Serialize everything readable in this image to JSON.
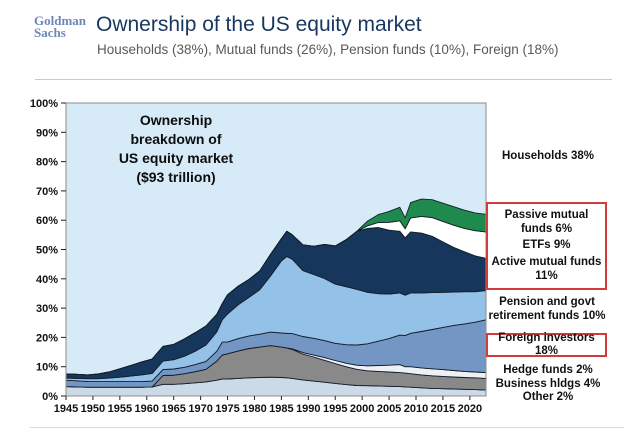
{
  "header": {
    "logo_line1": "Goldman",
    "logo_line2": "Sachs",
    "title": "Ownership of the US equity market",
    "subtitle": "Households (38%), Mutual funds (26%), Pension funds (10%), Foreign (18%)"
  },
  "annotation": {
    "line1": "Ownership",
    "line2": "breakdown of",
    "line3": "US equity market",
    "line4": "($93 trillion)"
  },
  "right_labels": {
    "households": "Households 38%",
    "passive_mutual_funds": "Passive mutual funds 6%",
    "etfs": "ETFs 9%",
    "active_mutual_funds": "Active mutual funds 11%",
    "pension": "Pension and govt retirement funds 10%",
    "foreign": "Foreign investors 18%",
    "hedge": "Hedge funds 2%",
    "business": "Business hldgs 4%",
    "other": "Other 2%"
  },
  "colors": {
    "accent_red": "#d23b3b",
    "title_blue": "#17375e",
    "logo_blue": "#6e87b7",
    "subtitle_gray": "#595959",
    "plot_bg": "#d6eaf8",
    "plot_border": "#8c8c8c",
    "band_stroke": "#141e2b",
    "tick_color": "#222222"
  },
  "chart_data": {
    "type": "area",
    "stacked": true,
    "title": "Ownership breakdown of US equity market ($93 trillion)",
    "xlim": [
      1945,
      2023
    ],
    "ylim": [
      0,
      100
    ],
    "x_ticks": [
      "1945",
      "1950",
      "1955",
      "1960",
      "1965",
      "1970",
      "1975",
      "1980",
      "1985",
      "1990",
      "1995",
      "2000",
      "2005",
      "2010",
      "2015",
      "2020"
    ],
    "y_ticks": [
      "0%",
      "10%",
      "20%",
      "30%",
      "40%",
      "50%",
      "60%",
      "70%",
      "80%",
      "90%",
      "100%"
    ],
    "background_area": {
      "name": "Households",
      "share_pct": 38,
      "color": "#d6eaf8",
      "note": "plot background represents remaining share up to 100%"
    },
    "x": [
      1945,
      1947,
      1949,
      1951,
      1953,
      1955,
      1957,
      1959,
      1961,
      1963,
      1965,
      1967,
      1969,
      1971,
      1973,
      1974,
      1975,
      1977,
      1979,
      1981,
      1983,
      1985,
      1986,
      1987,
      1989,
      1991,
      1993,
      1995,
      1997,
      1999,
      2001,
      2003,
      2005,
      2007,
      2008,
      2009,
      2011,
      2013,
      2015,
      2017,
      2019,
      2021,
      2023
    ],
    "series": [
      {
        "id": "other",
        "name": "Other",
        "share_pct": 2,
        "color": "#ccd9e6",
        "values": [
          3.2,
          3.1,
          3.0,
          3.0,
          3.0,
          3.0,
          3.0,
          3.0,
          3.1,
          4.0,
          4.0,
          4.2,
          4.5,
          4.8,
          5.4,
          5.8,
          5.8,
          6.0,
          6.2,
          6.3,
          6.4,
          6.3,
          6.2,
          6.0,
          5.5,
          5.1,
          4.7,
          4.3,
          3.9,
          3.6,
          3.5,
          3.4,
          3.3,
          3.2,
          3.1,
          3.0,
          2.8,
          2.6,
          2.5,
          2.4,
          2.3,
          2.2,
          2.0
        ]
      },
      {
        "id": "business-holdings",
        "name": "Business hldgs",
        "share_pct": 4,
        "color": "#898989",
        "values": [
          0,
          0,
          0,
          0,
          0,
          0,
          0,
          0,
          0,
          3.0,
          3.1,
          3.4,
          3.8,
          4.3,
          6.5,
          8.2,
          8.6,
          9.4,
          10.0,
          10.4,
          10.8,
          10.4,
          10.2,
          9.9,
          8.8,
          8.2,
          7.5,
          6.8,
          6.1,
          5.5,
          5.1,
          5.0,
          4.9,
          4.8,
          4.7,
          4.6,
          4.4,
          4.3,
          4.2,
          4.1,
          4.0,
          4.0,
          4.0
        ]
      },
      {
        "id": "hedge-funds",
        "name": "Hedge funds",
        "share_pct": 2,
        "color": "#eef1f4",
        "values": [
          0,
          0,
          0,
          0,
          0,
          0,
          0,
          0,
          0,
          0,
          0,
          0,
          0,
          0,
          0,
          0,
          0,
          0,
          0,
          0,
          0,
          0,
          0,
          0.2,
          0.5,
          0.7,
          0.9,
          1.0,
          1.2,
          1.4,
          1.7,
          2.0,
          2.3,
          2.7,
          2.2,
          2.4,
          2.4,
          2.4,
          2.3,
          2.2,
          2.1,
          2.0,
          2.0
        ]
      },
      {
        "id": "foreign-investors",
        "name": "Foreign investors",
        "share_pct": 18,
        "color": "#7496c4",
        "values": [
          2.2,
          2.1,
          2.0,
          1.9,
          1.9,
          1.9,
          1.9,
          1.9,
          2.0,
          2.0,
          2.1,
          2.2,
          2.4,
          2.7,
          3.4,
          4.4,
          4.0,
          4.2,
          4.3,
          4.4,
          4.6,
          4.8,
          5.0,
          5.2,
          5.5,
          5.7,
          5.8,
          5.9,
          6.3,
          6.9,
          7.5,
          8.3,
          9.1,
          10.1,
          10.6,
          11.4,
          12.4,
          13.4,
          14.4,
          15.4,
          16.2,
          17.0,
          18.0
        ]
      },
      {
        "id": "pension-govt-retirement",
        "name": "Pension and govt retirement funds",
        "share_pct": 10,
        "color": "#93c1e8",
        "values": [
          0.7,
          0.8,
          0.9,
          1.0,
          1.2,
          1.5,
          1.9,
          2.3,
          2.6,
          2.9,
          3.2,
          3.8,
          4.6,
          5.6,
          6.6,
          7.6,
          9.6,
          11.6,
          13.2,
          15.2,
          19.2,
          24.6,
          26.2,
          25.4,
          22.5,
          21.8,
          21.2,
          20.2,
          19.8,
          19.0,
          17.6,
          16.2,
          15.2,
          14.4,
          13.8,
          13.8,
          13.2,
          12.6,
          12.0,
          11.4,
          11.0,
          10.4,
          10.0
        ]
      },
      {
        "id": "active-mutual-funds",
        "name": "Active mutual funds",
        "share_pct": 11,
        "color": "#16365c",
        "values": [
          1.4,
          1.4,
          1.3,
          1.6,
          2.1,
          2.9,
          3.6,
          4.4,
          4.9,
          5.0,
          5.2,
          5.9,
          6.3,
          6.5,
          6.0,
          5.5,
          6.5,
          6.3,
          6.1,
          6.4,
          7.4,
          7.6,
          8.6,
          8.3,
          8.8,
          9.6,
          11.6,
          13.0,
          16.0,
          19.8,
          21.8,
          22.6,
          21.8,
          21.0,
          19.6,
          20.8,
          20.4,
          19.2,
          17.2,
          15.2,
          13.6,
          12.2,
          11.0
        ]
      },
      {
        "id": "etfs",
        "name": "ETFs",
        "share_pct": 9,
        "color": "#ffffff",
        "values": [
          0,
          0,
          0,
          0,
          0,
          0,
          0,
          0,
          0,
          0,
          0,
          0,
          0,
          0,
          0,
          0,
          0,
          0,
          0,
          0,
          0,
          0,
          0,
          0,
          0,
          0,
          0,
          0,
          0,
          0,
          0.9,
          1.7,
          2.7,
          3.6,
          3.1,
          4.8,
          5.7,
          6.4,
          7.0,
          7.6,
          8.0,
          8.6,
          9.0
        ]
      },
      {
        "id": "passive-mutual-funds",
        "name": "Passive mutual funds",
        "share_pct": 6,
        "color": "#1f8a4d",
        "values": [
          0,
          0,
          0,
          0,
          0,
          0,
          0,
          0,
          0,
          0,
          0,
          0,
          0,
          0,
          0,
          0,
          0,
          0,
          0,
          0,
          0,
          0,
          0,
          0,
          0,
          0,
          0,
          0,
          0,
          0,
          1.6,
          2.7,
          3.7,
          4.6,
          3.7,
          5.2,
          5.9,
          6.1,
          6.2,
          6.3,
          6.2,
          6.1,
          6.0
        ]
      }
    ]
  }
}
